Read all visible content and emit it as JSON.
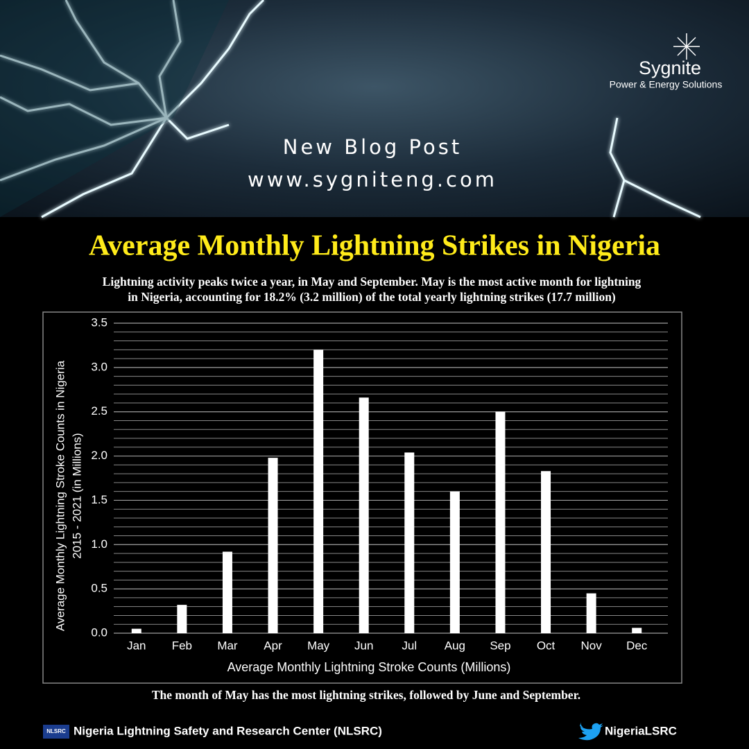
{
  "brand": {
    "name": "Sygnite",
    "tagline": "Power & Energy Solutions"
  },
  "banner": {
    "line1": "New Blog Post",
    "line2": "www.sygniteng.com"
  },
  "chart_data": {
    "type": "bar",
    "title": "Average Monthly Lightning Strikes in Nigeria",
    "subtitle": [
      "Lightning activity peaks twice a year, in May and September. May is the most active month for lightning",
      "in Nigeria, accounting for 18.2% (3.2 million) of the total yearly lightning strikes (17.7 million)"
    ],
    "ylabel": [
      "Average Monthly  Lightning Stroke Counts in Nigeria",
      "2015 - 2021 (in Millions)"
    ],
    "xlabel": "Average Monthly Lightning Stroke  Counts (Millions)",
    "categories": [
      "Jan",
      "Feb",
      "Mar",
      "Apr",
      "May",
      "Jun",
      "Jul",
      "Aug",
      "Sep",
      "Oct",
      "Nov",
      "Dec"
    ],
    "values": [
      0.05,
      0.32,
      0.92,
      1.98,
      3.2,
      2.66,
      2.04,
      1.6,
      2.5,
      1.83,
      0.45,
      0.06
    ],
    "color": "#ffffff",
    "ylim": [
      0,
      3.5
    ],
    "yticks": [
      {
        "value": 0,
        "label": "0.0"
      },
      0.5,
      {
        "value": 1,
        "label": "1.0"
      },
      1.5,
      {
        "value": 2,
        "label": "2.0"
      },
      2.5,
      {
        "value": 3,
        "label": "3.0"
      },
      3.5
    ],
    "minor_yticks": [
      0.1,
      0.2,
      0.3,
      0.4,
      0.6,
      0.7,
      0.8,
      0.9,
      1.1,
      1.2,
      1.3,
      1.4,
      1.6,
      1.7,
      1.8,
      1.9,
      2.1,
      2.2,
      2.3,
      2.4,
      2.6,
      2.7,
      2.8,
      2.9,
      3.1,
      3.2,
      3.3,
      3.4
    ],
    "grid": true,
    "caption": "The month  of May has the most lightning strikes, followed by June and September."
  },
  "footer": {
    "logo_text": "NLSRC",
    "organization": "Nigeria Lightning Safety and Research Center (NLSRC)",
    "twitter": "NigeriaLSRC"
  }
}
